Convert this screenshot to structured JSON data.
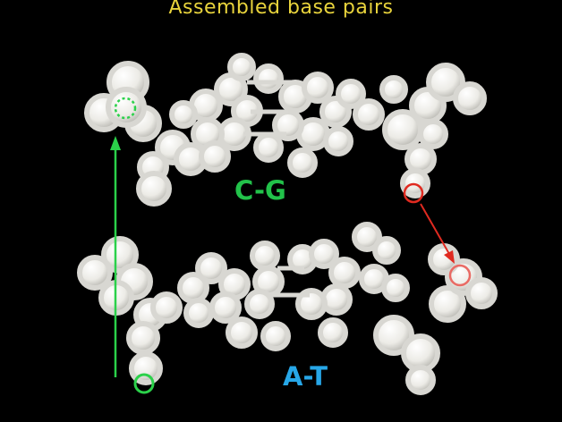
{
  "title": "Assembled base pairs",
  "pair_top": {
    "label": "C-G",
    "color": "#22c24a"
  },
  "pair_bottom": {
    "label": "A-T",
    "color": "#27a7e8"
  },
  "colors": {
    "background": "#000000",
    "title": "#e8d33c",
    "model_plastic": "#ecebe6",
    "green_marker": "#2bd14a",
    "red_marker": "#e02a20"
  }
}
